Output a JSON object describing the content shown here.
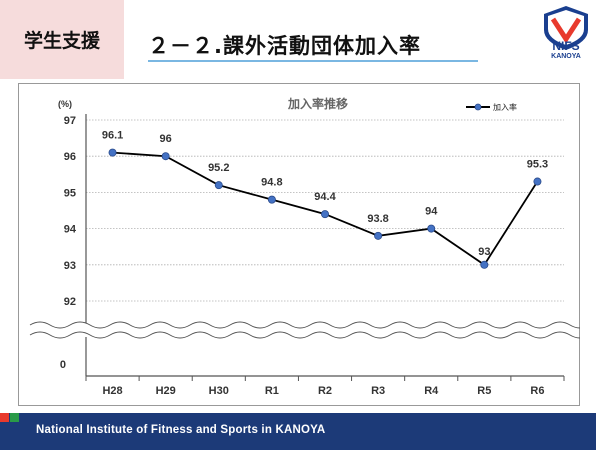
{
  "header": {
    "section_label": "学生支援",
    "title": "２－２.課外活動団体加入率",
    "logo_text": "NIFS",
    "logo_subtext": "KANOYA",
    "logo_badge_text": "KANOYA"
  },
  "chart_data": {
    "type": "line",
    "title": "加入率推移",
    "y_unit": "(%)",
    "categories": [
      "H28",
      "H29",
      "H30",
      "R1",
      "R2",
      "R3",
      "R4",
      "R5",
      "R6"
    ],
    "series": [
      {
        "name": "加入率",
        "values": [
          96.1,
          96,
          95.2,
          94.8,
          94.4,
          93.8,
          94,
          93,
          95.3
        ]
      }
    ],
    "data_labels": [
      "96.1",
      "96",
      "95.2",
      "94.8",
      "94.4",
      "93.8",
      "94",
      "93",
      "95.3"
    ],
    "y_ticks": [
      "97",
      "96",
      "95",
      "94",
      "93",
      "92"
    ],
    "y_ticks_below_break": [
      "0"
    ],
    "ylim": [
      92,
      97
    ],
    "axis_break": true,
    "grid": true,
    "legend_position": "top-right",
    "line_color": "#000000",
    "marker_color": "#4472c4"
  },
  "footer": {
    "text": "National Institute of Fitness and Sports in KANOYA",
    "colors": [
      "#e83a2d",
      "#2a9a48",
      "#1c3a78"
    ]
  }
}
